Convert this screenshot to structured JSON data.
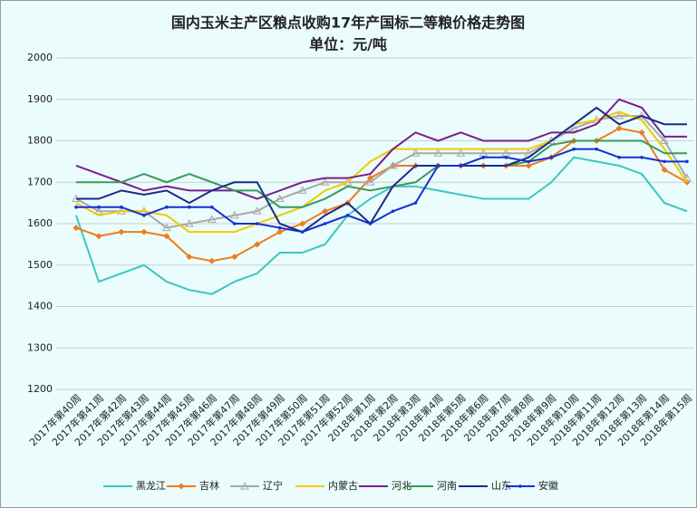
{
  "chart_data": {
    "type": "line",
    "title": "国内玉米主产区粮点收购17年产国标二等粮价格走势图",
    "subtitle": "单位：元/吨",
    "categories": [
      "2017年第40周",
      "2017年第41周",
      "2017年第42周",
      "2017年第43周",
      "2017年第44周",
      "2017年第45周",
      "2017年第46周",
      "2017年第47周",
      "2017年第48周",
      "2017年第49周",
      "2017年第50周",
      "2017年第51周",
      "2017年第52周",
      "2018年第1周",
      "2018年第2周",
      "2018年第3周",
      "2018年第4周",
      "2018年第5周",
      "2018年第6周",
      "2018年第7周",
      "2018年第8周",
      "2018年第9周",
      "2018年第10周",
      "2018年第11周",
      "2018年第12周",
      "2018年第13周",
      "2018年第14周",
      "2018年第15周"
    ],
    "series": [
      {
        "name": "黑龙江",
        "color": "#3cc6c0",
        "marker": "none",
        "values": [
          1620,
          1460,
          1480,
          1500,
          1460,
          1440,
          1430,
          1460,
          1480,
          1530,
          1530,
          1550,
          1620,
          1660,
          1690,
          1690,
          1680,
          1670,
          1660,
          1660,
          1660,
          1700,
          1760,
          1750,
          1740,
          1720,
          1650,
          1630
        ]
      },
      {
        "name": "吉林",
        "color": "#f07c1a",
        "marker": "diamond",
        "values": [
          1590,
          1570,
          1580,
          1580,
          1570,
          1520,
          1510,
          1520,
          1550,
          1580,
          1600,
          1630,
          1650,
          1710,
          1740,
          1740,
          1740,
          1740,
          1740,
          1740,
          1740,
          1760,
          1800,
          1800,
          1830,
          1820,
          1730,
          1700
        ]
      },
      {
        "name": "辽宁",
        "color": "#a8a8a8",
        "marker": "triangle",
        "values": [
          1660,
          1630,
          1630,
          1630,
          1590,
          1600,
          1610,
          1620,
          1630,
          1660,
          1680,
          1700,
          1700,
          1700,
          1740,
          1770,
          1770,
          1770,
          1770,
          1770,
          1770,
          1800,
          1830,
          1850,
          1860,
          1860,
          1800,
          1710
        ]
      },
      {
        "name": "内蒙古",
        "color": "#f5c800",
        "marker": "none",
        "values": [
          1650,
          1620,
          1630,
          1630,
          1620,
          1580,
          1580,
          1580,
          1600,
          1620,
          1640,
          1680,
          1700,
          1750,
          1780,
          1780,
          1780,
          1780,
          1780,
          1780,
          1780,
          1800,
          1840,
          1850,
          1870,
          1850,
          1780,
          1700
        ]
      },
      {
        "name": "河北",
        "color": "#7a1f8c",
        "marker": "none",
        "values": [
          1740,
          1720,
          1700,
          1680,
          1690,
          1680,
          1680,
          1680,
          1660,
          1680,
          1700,
          1710,
          1710,
          1720,
          1780,
          1820,
          1800,
          1820,
          1800,
          1800,
          1800,
          1820,
          1820,
          1840,
          1900,
          1880,
          1810,
          1810
        ]
      },
      {
        "name": "河南",
        "color": "#3a9a5a",
        "marker": "none",
        "values": [
          1700,
          1700,
          1700,
          1720,
          1700,
          1720,
          1700,
          1680,
          1680,
          1640,
          1640,
          1660,
          1690,
          1680,
          1690,
          1700,
          1740,
          1740,
          1740,
          1740,
          1750,
          1790,
          1800,
          1800,
          1800,
          1800,
          1770,
          1770
        ]
      },
      {
        "name": "山东",
        "color": "#1a2a8a",
        "marker": "none",
        "values": [
          1660,
          1660,
          1680,
          1670,
          1680,
          1650,
          1680,
          1700,
          1700,
          1600,
          1580,
          1620,
          1650,
          1600,
          1690,
          1740,
          1740,
          1740,
          1740,
          1740,
          1760,
          1800,
          1840,
          1880,
          1840,
          1860,
          1840,
          1840
        ]
      },
      {
        "name": "安徽",
        "color": "#1530d0",
        "marker": "dot",
        "values": [
          1640,
          1640,
          1640,
          1620,
          1640,
          1640,
          1640,
          1600,
          1600,
          1590,
          1580,
          1600,
          1620,
          1600,
          1630,
          1650,
          1740,
          1740,
          1760,
          1760,
          1750,
          1760,
          1780,
          1780,
          1760,
          1760,
          1750,
          1750
        ]
      }
    ],
    "ylim": [
      1200,
      2000
    ],
    "yticks": [
      1200,
      1300,
      1400,
      1500,
      1600,
      1700,
      1800,
      1900,
      2000
    ],
    "grid": true,
    "legend": "bottom"
  }
}
